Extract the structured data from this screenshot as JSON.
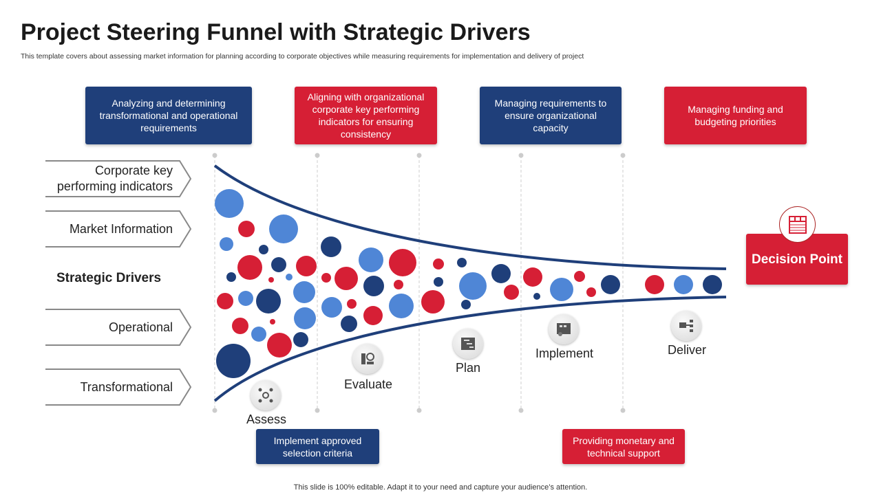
{
  "title": "Project Steering Funnel with Strategic Drivers",
  "subtitle": "This template covers about assessing market information for planning according to corporate objectives while measuring requirements for implementation and delivery of project",
  "top_boxes": [
    {
      "text": "Analyzing and determining transformational and operational requirements",
      "color": "#1F3F7A"
    },
    {
      "text": "Aligning with organizational corporate key performing indicators for ensuring consistency",
      "color": "#D61F35"
    },
    {
      "text": "Managing requirements to ensure organizational capacity",
      "color": "#1F3F7A"
    },
    {
      "text": "Managing funding and budgeting priorities",
      "color": "#D61F35"
    }
  ],
  "bottom_boxes": [
    {
      "text": "Implement approved selection criteria",
      "color": "#1F3F7A"
    },
    {
      "text": "Providing monetary and technical support",
      "color": "#D61F35"
    }
  ],
  "drivers": [
    "Corporate key performing indicators",
    "Market Information",
    "Operational",
    "Transformational"
  ],
  "strategic_drivers_label": "Strategic Drivers",
  "stages": [
    {
      "label": "Assess",
      "icon": "process-gear-icon"
    },
    {
      "label": "Evaluate",
      "icon": "evaluation-icon"
    },
    {
      "label": "Plan",
      "icon": "gantt-chart-icon"
    },
    {
      "label": "Implement",
      "icon": "blueprint-icon"
    },
    {
      "label": "Deliver",
      "icon": "network-delivery-icon"
    }
  ],
  "decision_point": {
    "label": "Decision Point",
    "icon": "calendar-icon"
  },
  "colors": {
    "red": "#D61F35",
    "dark_blue": "#1F3F7A",
    "light_blue": "#4F86D6",
    "funnel": "#1F3F7A"
  },
  "footer": "This slide is 100% editable. Adapt it to your need and capture your audience’s attention."
}
